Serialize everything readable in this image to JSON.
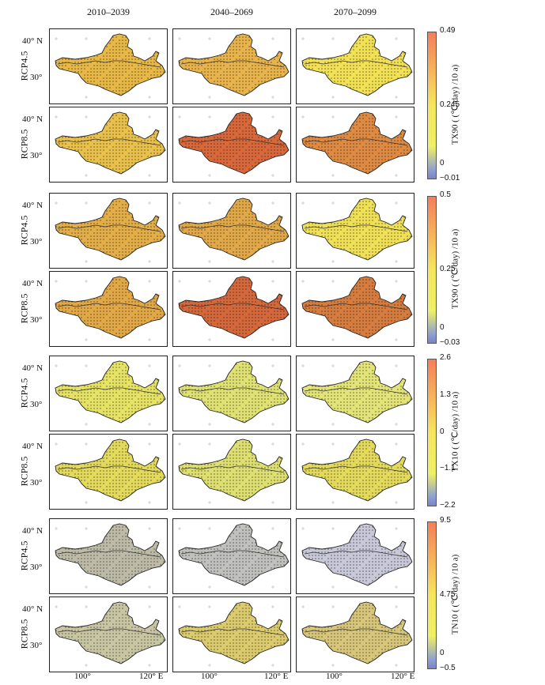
{
  "columns": [
    "2010–2039",
    "2040–2069",
    "2070–2099"
  ],
  "row_labels": [
    "RCP4.5",
    "RCP8.5"
  ],
  "lat_ticks": {
    "upper": "40° N",
    "lower": "30°"
  },
  "lon_ticks": [
    "100°",
    "120° E"
  ],
  "groups": [
    {
      "colorbar_title": "TX90 ( (℃/day) /10 a)",
      "colorbar_ticks": {
        "top": "0.49",
        "mid": "0.245",
        "zero": "0",
        "bottom": "−0.01"
      },
      "panel_colors": [
        [
          "#e7b845",
          "#e8b34a",
          "#f2e154"
        ],
        [
          "#e9c14a",
          "#d8683a",
          "#de8a42"
        ]
      ]
    },
    {
      "colorbar_title": "TX90 ( (℃/day) /10 a)",
      "colorbar_ticks": {
        "top": "0.5",
        "mid": "0.25",
        "zero": "0",
        "bottom": "−0.03"
      },
      "panel_colors": [
        [
          "#e3ae47",
          "#e0a847",
          "#f0e055"
        ],
        [
          "#e2a846",
          "#d4683a",
          "#d67c3f"
        ]
      ]
    },
    {
      "colorbar_title": "TX10 ( (℃/day) /10 a)",
      "colorbar_ticks": {
        "top": "2.6",
        "mid": "1.3",
        "zero": "0",
        "m1": "−1.1",
        "bottom": "−2.2"
      },
      "panel_colors": [
        [
          "#e6e264",
          "#dfe273",
          "#e3e478"
        ],
        [
          "#e3d95a",
          "#dde070",
          "#e3da5c"
        ]
      ]
    },
    {
      "colorbar_title": "TN10 ( (℃/day) /10 a)",
      "colorbar_ticks": {
        "top": "9.5",
        "mid": "4.75",
        "zero": "0",
        "bottom": "−0.5"
      },
      "panel_colors": [
        [
          "#bdbba7",
          "#c0c0bd",
          "#c8c8d8"
        ],
        [
          "#c8c5a2",
          "#dccb6c",
          "#d7c57a"
        ]
      ]
    }
  ]
}
